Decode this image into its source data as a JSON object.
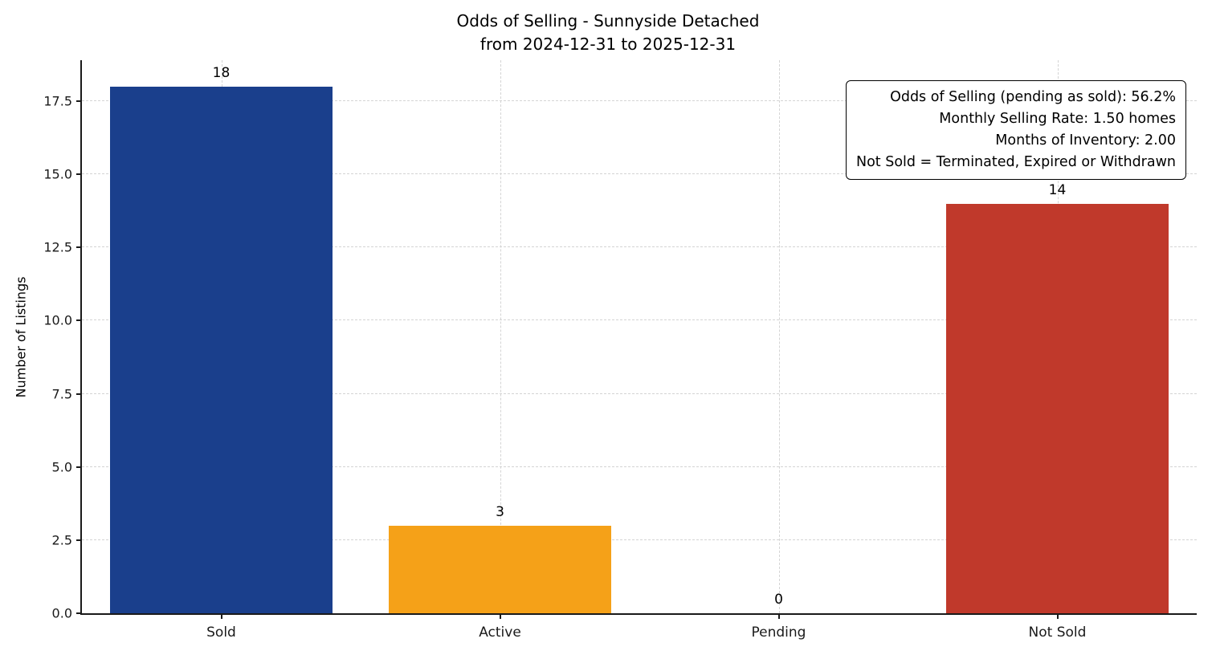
{
  "title": "Odds of Selling - Sunnyside Detached",
  "subtitle": "from 2024-12-31 to 2025-12-31",
  "y_axis_label": "Number of Listings",
  "annotation": {
    "lines": [
      "Odds of Selling (pending as sold): 56.2%",
      "Monthly Selling Rate: 1.50 homes",
      "Months of Inventory: 2.00",
      "Not Sold = Terminated, Expired or Withdrawn"
    ]
  },
  "chart_data": {
    "type": "bar",
    "title": "Odds of Selling - Sunnyside Detached",
    "subtitle": "from 2024-12-31 to 2025-12-31",
    "categories": [
      "Sold",
      "Active",
      "Pending",
      "Not Sold"
    ],
    "values": [
      18,
      3,
      0,
      14
    ],
    "value_labels": [
      "18",
      "3",
      "0",
      "14"
    ],
    "bar_colors": [
      "#1a3f8c",
      "#f5a118",
      "#7f7f7f",
      "#c0392b"
    ],
    "xlabel": "",
    "ylabel": "Number of Listings",
    "ylim": [
      0,
      18.9
    ],
    "yticks": [
      0.0,
      2.5,
      5.0,
      7.5,
      10.0,
      12.5,
      15.0,
      17.5
    ],
    "ytick_labels": [
      "0.0",
      "2.5",
      "5.0",
      "7.5",
      "10.0",
      "12.5",
      "15.0",
      "17.5"
    ],
    "bar_width_fraction": 0.8,
    "grid": "dashed",
    "legend": "none",
    "annotation_lines": [
      "Odds of Selling (pending as sold): 56.2%",
      "Monthly Selling Rate: 1.50 homes",
      "Months of Inventory: 2.00",
      "Not Sold = Terminated, Expired or Withdrawn"
    ]
  }
}
